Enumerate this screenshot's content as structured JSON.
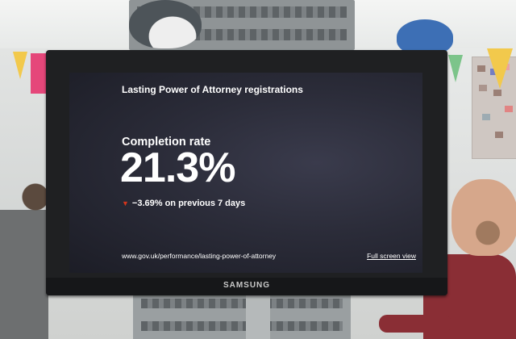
{
  "screen": {
    "title": "Lasting Power of Attorney registrations",
    "metric_label": "Completion rate",
    "metric_value": "21.3%",
    "change_icon": "down-triangle-icon",
    "change_symbol": "▼",
    "change_text": "−3.69% on previous 7 days",
    "url": "www.gov.uk/performance/lasting-power-of-attorney",
    "fullscreen_link": "Full screen view"
  },
  "monitor": {
    "brand": "SAMSUNG"
  },
  "colors": {
    "screen_bg": "#2b2c39",
    "negative_change": "#d4351c"
  }
}
